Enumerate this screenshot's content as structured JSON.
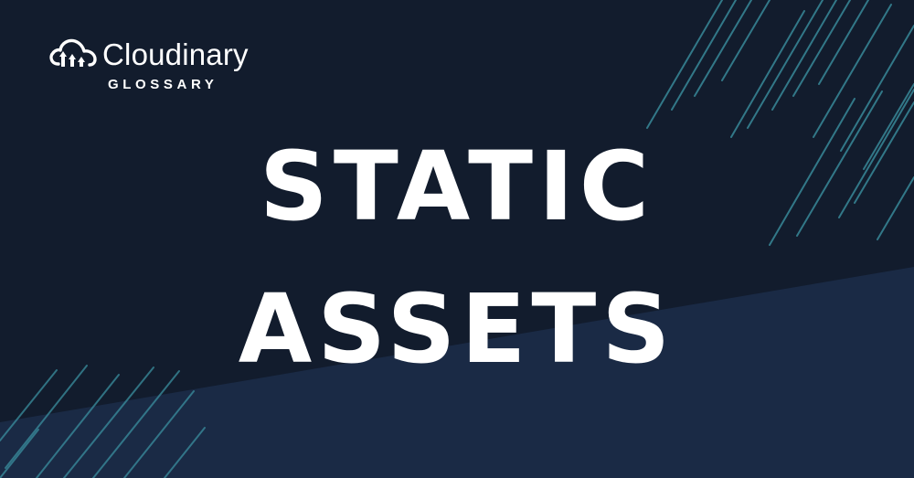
{
  "brand": {
    "logo_icon": "cloud-upload-icon",
    "name": "Cloudinary",
    "subtitle": "GLOSSARY"
  },
  "headline": {
    "line1": "STATIC",
    "line2": "ASSETS"
  },
  "colors": {
    "background_dark": "#121c2d",
    "background_lower": "#1a2a45",
    "stripe": "#3a8f9f",
    "text": "#ffffff"
  }
}
